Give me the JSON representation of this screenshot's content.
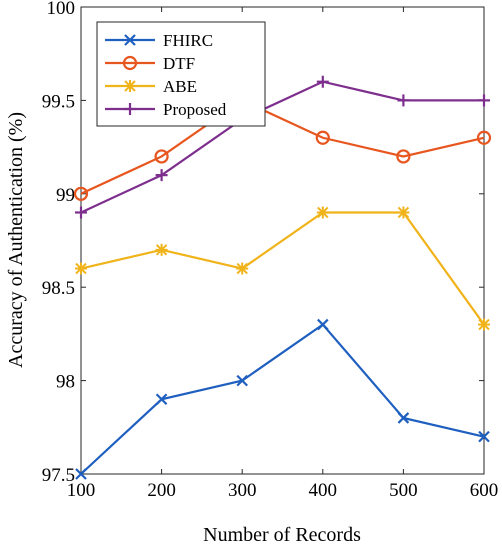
{
  "chart_data": {
    "type": "line",
    "x": [
      100,
      200,
      300,
      400,
      500,
      600
    ],
    "xlabel": "Number of Records",
    "ylabel": "Accuracy of Authentication (%)",
    "xlim": [
      100,
      600
    ],
    "ylim": [
      97.5,
      100
    ],
    "xticks": [
      "100",
      "200",
      "300",
      "400",
      "500",
      "600"
    ],
    "yticks": [
      "97.5",
      "98",
      "98.5",
      "99",
      "99.5",
      "100"
    ],
    "grid": false,
    "legend_position": "top-left",
    "series": [
      {
        "name": "FHIRC",
        "color": "#1f5fbf",
        "marker": "x",
        "values": [
          97.5,
          97.9,
          98.0,
          98.3,
          97.8,
          97.7
        ]
      },
      {
        "name": "DTF",
        "color": "#e8561f",
        "marker": "o",
        "values": [
          99.0,
          99.2,
          99.5,
          99.3,
          99.2,
          99.3
        ]
      },
      {
        "name": "ABE",
        "color": "#f0b31a",
        "marker": "*",
        "values": [
          98.6,
          98.7,
          98.6,
          98.9,
          98.9,
          98.3
        ]
      },
      {
        "name": "Proposed",
        "color": "#7e2f8e",
        "marker": "+",
        "values": [
          98.9,
          99.1,
          99.4,
          99.6,
          99.5,
          99.5
        ]
      }
    ]
  }
}
